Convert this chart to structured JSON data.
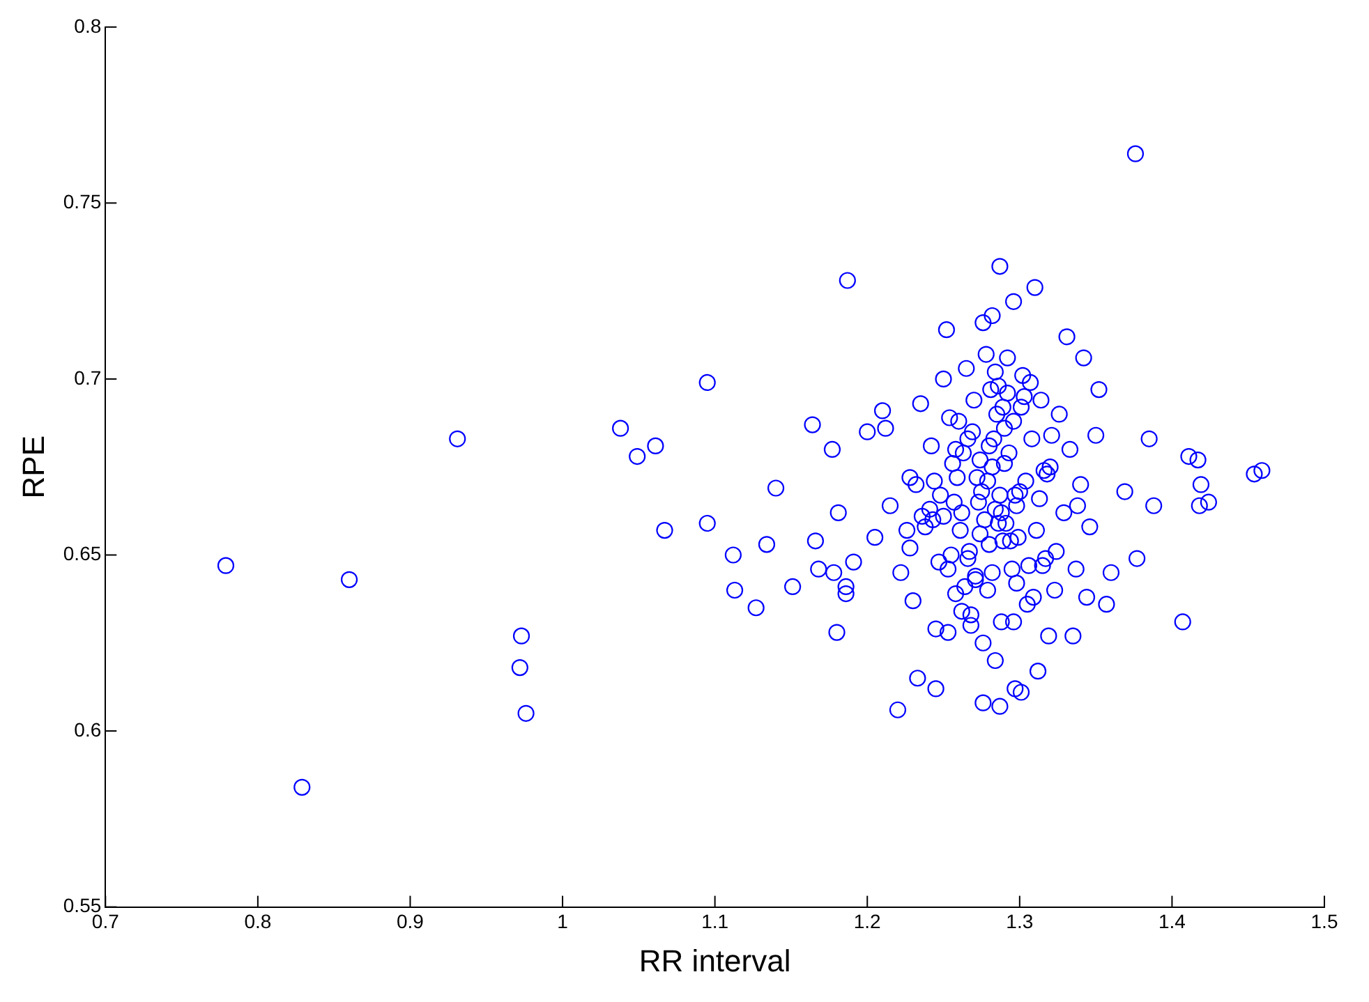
{
  "chart_data": {
    "type": "scatter",
    "xlabel": "RR interval",
    "ylabel": "RPE",
    "xlim": [
      0.7,
      1.5
    ],
    "ylim": [
      0.55,
      0.8
    ],
    "xticks": [
      0.7,
      0.8,
      0.9,
      1,
      1.1,
      1.2,
      1.3,
      1.4,
      1.5
    ],
    "yticks": [
      0.55,
      0.6,
      0.65,
      0.7,
      0.75,
      0.8
    ],
    "grid": false,
    "legend": false,
    "marker": "circle",
    "series": [
      {
        "color": "#0000ff",
        "x": [
          0.779,
          0.829,
          0.86,
          0.931,
          0.973,
          0.972,
          0.976,
          1.038,
          1.049,
          1.061,
          1.067,
          1.095,
          1.095,
          1.112,
          1.113,
          1.127,
          1.134,
          1.14,
          1.151,
          1.164,
          1.166,
          1.168,
          1.177,
          1.178,
          1.18,
          1.181,
          1.186,
          1.186,
          1.187,
          1.191,
          1.376,
          1.407,
          1.411,
          1.417,
          1.418,
          1.419,
          1.424,
          1.454,
          1.459,
          1.385,
          1.388,
          1.377,
          1.369,
          1.36,
          1.357,
          1.352,
          1.342,
          1.344,
          1.331,
          1.335,
          1.31,
          1.287,
          1.296,
          1.282,
          1.276,
          1.252,
          1.22,
          1.245,
          1.233,
          1.287,
          1.297,
          1.301,
          1.312,
          1.319,
          1.284,
          1.276,
          1.2,
          1.205,
          1.21,
          1.215,
          1.222,
          1.228,
          1.23,
          1.235,
          1.238,
          1.242,
          1.245,
          1.248,
          1.25,
          1.253,
          1.256,
          1.258,
          1.26,
          1.262,
          1.265,
          1.267,
          1.268,
          1.27,
          1.272,
          1.274,
          1.276,
          1.278,
          1.28,
          1.282,
          1.284,
          1.286,
          1.288,
          1.29,
          1.292,
          1.294,
          1.296,
          1.298,
          1.3,
          1.302,
          1.305,
          1.308,
          1.311,
          1.314,
          1.317,
          1.32,
          1.323,
          1.326,
          1.329,
          1.333,
          1.337,
          1.34,
          1.346,
          1.35,
          1.228,
          1.243,
          1.257,
          1.263,
          1.271,
          1.279,
          1.285,
          1.291,
          1.297,
          1.303,
          1.309,
          1.316,
          1.324,
          1.212,
          1.232,
          1.25,
          1.266,
          1.283,
          1.299,
          1.318,
          1.338,
          1.255,
          1.273,
          1.289,
          1.306,
          1.241,
          1.259,
          1.264,
          1.269,
          1.277,
          1.281,
          1.287,
          1.293,
          1.247,
          1.261,
          1.275,
          1.289,
          1.301,
          1.313,
          1.236,
          1.254,
          1.268,
          1.282,
          1.295,
          1.307,
          1.321,
          1.258,
          1.271,
          1.286,
          1.298,
          1.226,
          1.244,
          1.262,
          1.28,
          1.292,
          1.304,
          1.315,
          1.274,
          1.279,
          1.284,
          1.29,
          1.266,
          1.253,
          1.296,
          1.288
        ],
        "values": [
          0.647,
          0.584,
          0.643,
          0.683,
          0.627,
          0.618,
          0.605,
          0.686,
          0.678,
          0.681,
          0.657,
          0.699,
          0.659,
          0.65,
          0.64,
          0.635,
          0.653,
          0.669,
          0.641,
          0.687,
          0.654,
          0.646,
          0.68,
          0.645,
          0.628,
          0.662,
          0.641,
          0.639,
          0.728,
          0.648,
          0.764,
          0.631,
          0.678,
          0.677,
          0.664,
          0.67,
          0.665,
          0.673,
          0.674,
          0.683,
          0.664,
          0.649,
          0.668,
          0.645,
          0.636,
          0.697,
          0.706,
          0.638,
          0.712,
          0.627,
          0.726,
          0.732,
          0.722,
          0.718,
          0.716,
          0.714,
          0.606,
          0.612,
          0.615,
          0.607,
          0.612,
          0.611,
          0.617,
          0.627,
          0.62,
          0.608,
          0.685,
          0.655,
          0.691,
          0.664,
          0.645,
          0.672,
          0.637,
          0.693,
          0.658,
          0.681,
          0.629,
          0.667,
          0.7,
          0.646,
          0.676,
          0.639,
          0.688,
          0.662,
          0.703,
          0.651,
          0.633,
          0.694,
          0.672,
          0.656,
          0.625,
          0.707,
          0.681,
          0.645,
          0.663,
          0.698,
          0.631,
          0.676,
          0.706,
          0.654,
          0.688,
          0.642,
          0.668,
          0.701,
          0.636,
          0.683,
          0.657,
          0.694,
          0.649,
          0.675,
          0.64,
          0.69,
          0.662,
          0.68,
          0.646,
          0.67,
          0.658,
          0.684,
          0.652,
          0.66,
          0.665,
          0.679,
          0.643,
          0.671,
          0.69,
          0.659,
          0.667,
          0.695,
          0.638,
          0.674,
          0.651,
          0.686,
          0.67,
          0.661,
          0.649,
          0.683,
          0.655,
          0.673,
          0.664,
          0.65,
          0.665,
          0.692,
          0.647,
          0.663,
          0.672,
          0.641,
          0.685,
          0.66,
          0.697,
          0.667,
          0.679,
          0.648,
          0.657,
          0.668,
          0.654,
          0.692,
          0.666,
          0.661,
          0.689,
          0.63,
          0.675,
          0.646,
          0.699,
          0.684,
          0.68,
          0.644,
          0.659,
          0.664,
          0.657,
          0.671,
          0.634,
          0.653,
          0.696,
          0.671,
          0.647,
          0.677,
          0.64,
          0.702,
          0.686,
          0.683,
          0.628,
          0.631,
          0.662
        ]
      }
    ]
  }
}
